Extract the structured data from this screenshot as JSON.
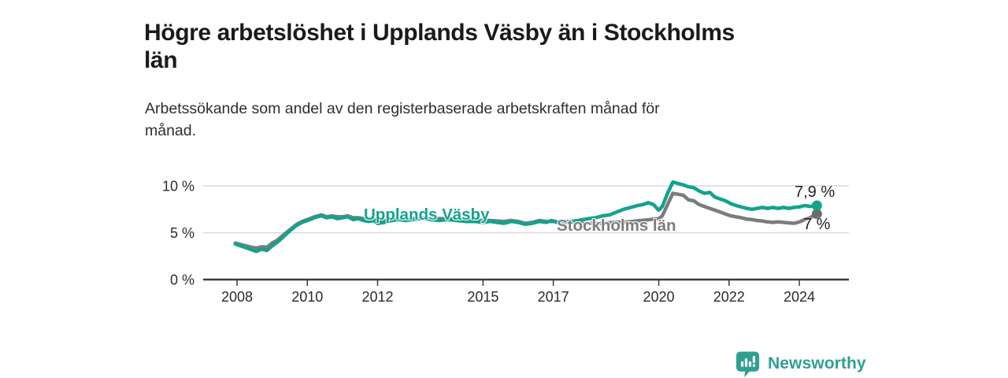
{
  "header": {
    "title_lines": [
      "Högre arbetslöshet i Upplands Väsby än i Stockholms",
      "län"
    ],
    "subtitle_lines": [
      "Arbetssökande som andel av den registerbaserade arbetskraften månad för",
      "månad."
    ]
  },
  "chart_data": {
    "type": "line",
    "title": "Högre arbetslöshet i Upplands Väsby än i Stockholms län",
    "subtitle": "Arbetssökande som andel av den registerbaserade arbetskraften månad för månad.",
    "unit": "%",
    "grid": "horizontal-only",
    "legend_position": "inline-on-lines",
    "xlim": [
      2007.0,
      2025.4
    ],
    "ylim": [
      0,
      10.5
    ],
    "x_ticks": [
      2008,
      2010,
      2012,
      2015,
      2017,
      2020,
      2022,
      2024
    ],
    "y_ticks": [
      {
        "value": 0,
        "label": "0 %"
      },
      {
        "value": 5,
        "label": "5 %"
      },
      {
        "value": 10,
        "label": "10 %"
      }
    ],
    "colors": {
      "axis": "#3a3a3a",
      "grid": "#d9d9d9",
      "tick_text": "#2b2b2b",
      "annotation_text": "#1f1f1f"
    },
    "series": [
      {
        "name": "Upplands Väsby",
        "color": "#14a28e",
        "dot_color": "#14a28e",
        "end_label": "7,9 %",
        "end_value": 7.9,
        "points": [
          [
            2007.95,
            3.8
          ],
          [
            2008.1,
            3.6
          ],
          [
            2008.25,
            3.4
          ],
          [
            2008.4,
            3.2
          ],
          [
            2008.55,
            3.0
          ],
          [
            2008.7,
            3.25
          ],
          [
            2008.85,
            3.1
          ],
          [
            2009.0,
            3.6
          ],
          [
            2009.15,
            4.0
          ],
          [
            2009.3,
            4.5
          ],
          [
            2009.5,
            5.2
          ],
          [
            2009.7,
            5.8
          ],
          [
            2009.85,
            6.1
          ],
          [
            2010.0,
            6.3
          ],
          [
            2010.2,
            6.6
          ],
          [
            2010.4,
            6.8
          ],
          [
            2010.55,
            6.6
          ],
          [
            2010.7,
            6.7
          ],
          [
            2010.85,
            6.5
          ],
          [
            2011.0,
            6.6
          ],
          [
            2011.15,
            6.7
          ],
          [
            2011.3,
            6.4
          ],
          [
            2011.45,
            6.5
          ],
          [
            2011.6,
            6.3
          ],
          [
            2011.75,
            6.2
          ],
          [
            2011.9,
            6.3
          ],
          [
            2012.0,
            6.0
          ],
          [
            2012.2,
            6.1
          ],
          [
            2012.4,
            6.3
          ],
          [
            2012.6,
            6.4
          ],
          [
            2012.8,
            6.3
          ],
          [
            2013.0,
            6.4
          ],
          [
            2013.25,
            6.5
          ],
          [
            2013.5,
            6.4
          ],
          [
            2013.75,
            6.3
          ],
          [
            2014.0,
            6.4
          ],
          [
            2014.25,
            6.3
          ],
          [
            2014.5,
            6.2
          ],
          [
            2014.75,
            6.2
          ],
          [
            2015.0,
            6.1
          ],
          [
            2015.2,
            6.2
          ],
          [
            2015.4,
            6.1
          ],
          [
            2015.6,
            6.0
          ],
          [
            2015.8,
            6.2
          ],
          [
            2016.0,
            6.1
          ],
          [
            2016.2,
            5.9
          ],
          [
            2016.4,
            6.0
          ],
          [
            2016.6,
            6.2
          ],
          [
            2016.8,
            6.1
          ],
          [
            2016.95,
            6.3
          ],
          [
            2017.1,
            6.1
          ],
          [
            2017.3,
            6.2
          ],
          [
            2017.5,
            6.2
          ],
          [
            2017.7,
            6.3
          ],
          [
            2017.85,
            6.4
          ],
          [
            2018.0,
            6.5
          ],
          [
            2018.2,
            6.6
          ],
          [
            2018.4,
            6.8
          ],
          [
            2018.6,
            6.9
          ],
          [
            2018.8,
            7.2
          ],
          [
            2019.0,
            7.5
          ],
          [
            2019.2,
            7.7
          ],
          [
            2019.4,
            7.9
          ],
          [
            2019.55,
            8.0
          ],
          [
            2019.7,
            8.2
          ],
          [
            2019.85,
            8.0
          ],
          [
            2020.0,
            7.4
          ],
          [
            2020.1,
            7.8
          ],
          [
            2020.25,
            9.2
          ],
          [
            2020.4,
            10.4
          ],
          [
            2020.55,
            10.25
          ],
          [
            2020.7,
            10.1
          ],
          [
            2020.85,
            9.9
          ],
          [
            2021.0,
            9.8
          ],
          [
            2021.15,
            9.45
          ],
          [
            2021.3,
            9.2
          ],
          [
            2021.45,
            9.3
          ],
          [
            2021.6,
            8.8
          ],
          [
            2021.75,
            8.6
          ],
          [
            2021.9,
            8.4
          ],
          [
            2022.05,
            8.1
          ],
          [
            2022.2,
            7.9
          ],
          [
            2022.35,
            7.75
          ],
          [
            2022.5,
            7.6
          ],
          [
            2022.65,
            7.5
          ],
          [
            2022.8,
            7.6
          ],
          [
            2022.95,
            7.7
          ],
          [
            2023.1,
            7.6
          ],
          [
            2023.25,
            7.7
          ],
          [
            2023.4,
            7.6
          ],
          [
            2023.55,
            7.7
          ],
          [
            2023.7,
            7.6
          ],
          [
            2023.85,
            7.7
          ],
          [
            2024.0,
            7.75
          ],
          [
            2024.15,
            7.9
          ],
          [
            2024.3,
            7.8
          ],
          [
            2024.5,
            7.9
          ]
        ]
      },
      {
        "name": "Stockholms län",
        "color": "#7c7c7c",
        "dot_color": "#6b6b6b",
        "end_label": "7 %",
        "end_value": 7.0,
        "points": [
          [
            2007.95,
            3.9
          ],
          [
            2008.1,
            3.75
          ],
          [
            2008.25,
            3.6
          ],
          [
            2008.4,
            3.45
          ],
          [
            2008.55,
            3.35
          ],
          [
            2008.7,
            3.5
          ],
          [
            2008.85,
            3.45
          ],
          [
            2009.0,
            3.9
          ],
          [
            2009.15,
            4.2
          ],
          [
            2009.3,
            4.7
          ],
          [
            2009.5,
            5.3
          ],
          [
            2009.7,
            5.9
          ],
          [
            2009.85,
            6.2
          ],
          [
            2010.0,
            6.4
          ],
          [
            2010.2,
            6.7
          ],
          [
            2010.4,
            6.9
          ],
          [
            2010.55,
            6.7
          ],
          [
            2010.7,
            6.8
          ],
          [
            2010.85,
            6.7
          ],
          [
            2011.0,
            6.7
          ],
          [
            2011.15,
            6.8
          ],
          [
            2011.3,
            6.6
          ],
          [
            2011.45,
            6.6
          ],
          [
            2011.6,
            6.5
          ],
          [
            2011.75,
            6.4
          ],
          [
            2011.9,
            6.4
          ],
          [
            2012.0,
            6.2
          ],
          [
            2012.2,
            6.3
          ],
          [
            2012.4,
            6.4
          ],
          [
            2012.6,
            6.5
          ],
          [
            2012.8,
            6.5
          ],
          [
            2013.0,
            6.5
          ],
          [
            2013.25,
            6.6
          ],
          [
            2013.5,
            6.5
          ],
          [
            2013.75,
            6.5
          ],
          [
            2014.0,
            6.5
          ],
          [
            2014.25,
            6.4
          ],
          [
            2014.5,
            6.4
          ],
          [
            2014.75,
            6.3
          ],
          [
            2015.0,
            6.3
          ],
          [
            2015.2,
            6.3
          ],
          [
            2015.4,
            6.25
          ],
          [
            2015.6,
            6.2
          ],
          [
            2015.8,
            6.3
          ],
          [
            2016.0,
            6.2
          ],
          [
            2016.2,
            6.0
          ],
          [
            2016.4,
            6.1
          ],
          [
            2016.6,
            6.3
          ],
          [
            2016.8,
            6.2
          ],
          [
            2016.95,
            6.2
          ],
          [
            2017.1,
            6.2
          ],
          [
            2017.3,
            6.1
          ],
          [
            2017.5,
            6.1
          ],
          [
            2017.7,
            6.0
          ],
          [
            2017.85,
            6.0
          ],
          [
            2018.0,
            6.0
          ],
          [
            2018.25,
            6.0
          ],
          [
            2018.5,
            6.05
          ],
          [
            2018.75,
            6.1
          ],
          [
            2019.0,
            6.1
          ],
          [
            2019.25,
            6.2
          ],
          [
            2019.5,
            6.3
          ],
          [
            2019.75,
            6.4
          ],
          [
            2020.0,
            6.5
          ],
          [
            2020.1,
            6.8
          ],
          [
            2020.25,
            8.0
          ],
          [
            2020.4,
            9.2
          ],
          [
            2020.55,
            9.1
          ],
          [
            2020.7,
            9.0
          ],
          [
            2020.85,
            8.5
          ],
          [
            2021.0,
            8.4
          ],
          [
            2021.15,
            8.0
          ],
          [
            2021.3,
            7.8
          ],
          [
            2021.45,
            7.6
          ],
          [
            2021.6,
            7.4
          ],
          [
            2021.75,
            7.2
          ],
          [
            2021.9,
            7.0
          ],
          [
            2022.05,
            6.8
          ],
          [
            2022.2,
            6.7
          ],
          [
            2022.35,
            6.6
          ],
          [
            2022.5,
            6.45
          ],
          [
            2022.65,
            6.4
          ],
          [
            2022.8,
            6.3
          ],
          [
            2022.95,
            6.25
          ],
          [
            2023.1,
            6.15
          ],
          [
            2023.25,
            6.1
          ],
          [
            2023.4,
            6.15
          ],
          [
            2023.55,
            6.1
          ],
          [
            2023.7,
            6.05
          ],
          [
            2023.85,
            6.0
          ],
          [
            2024.0,
            6.15
          ],
          [
            2024.15,
            6.4
          ],
          [
            2024.3,
            6.6
          ],
          [
            2024.5,
            7.0
          ]
        ]
      }
    ]
  },
  "footer": {
    "brand": "Newsworthy",
    "logo_color": "#2ea092"
  }
}
